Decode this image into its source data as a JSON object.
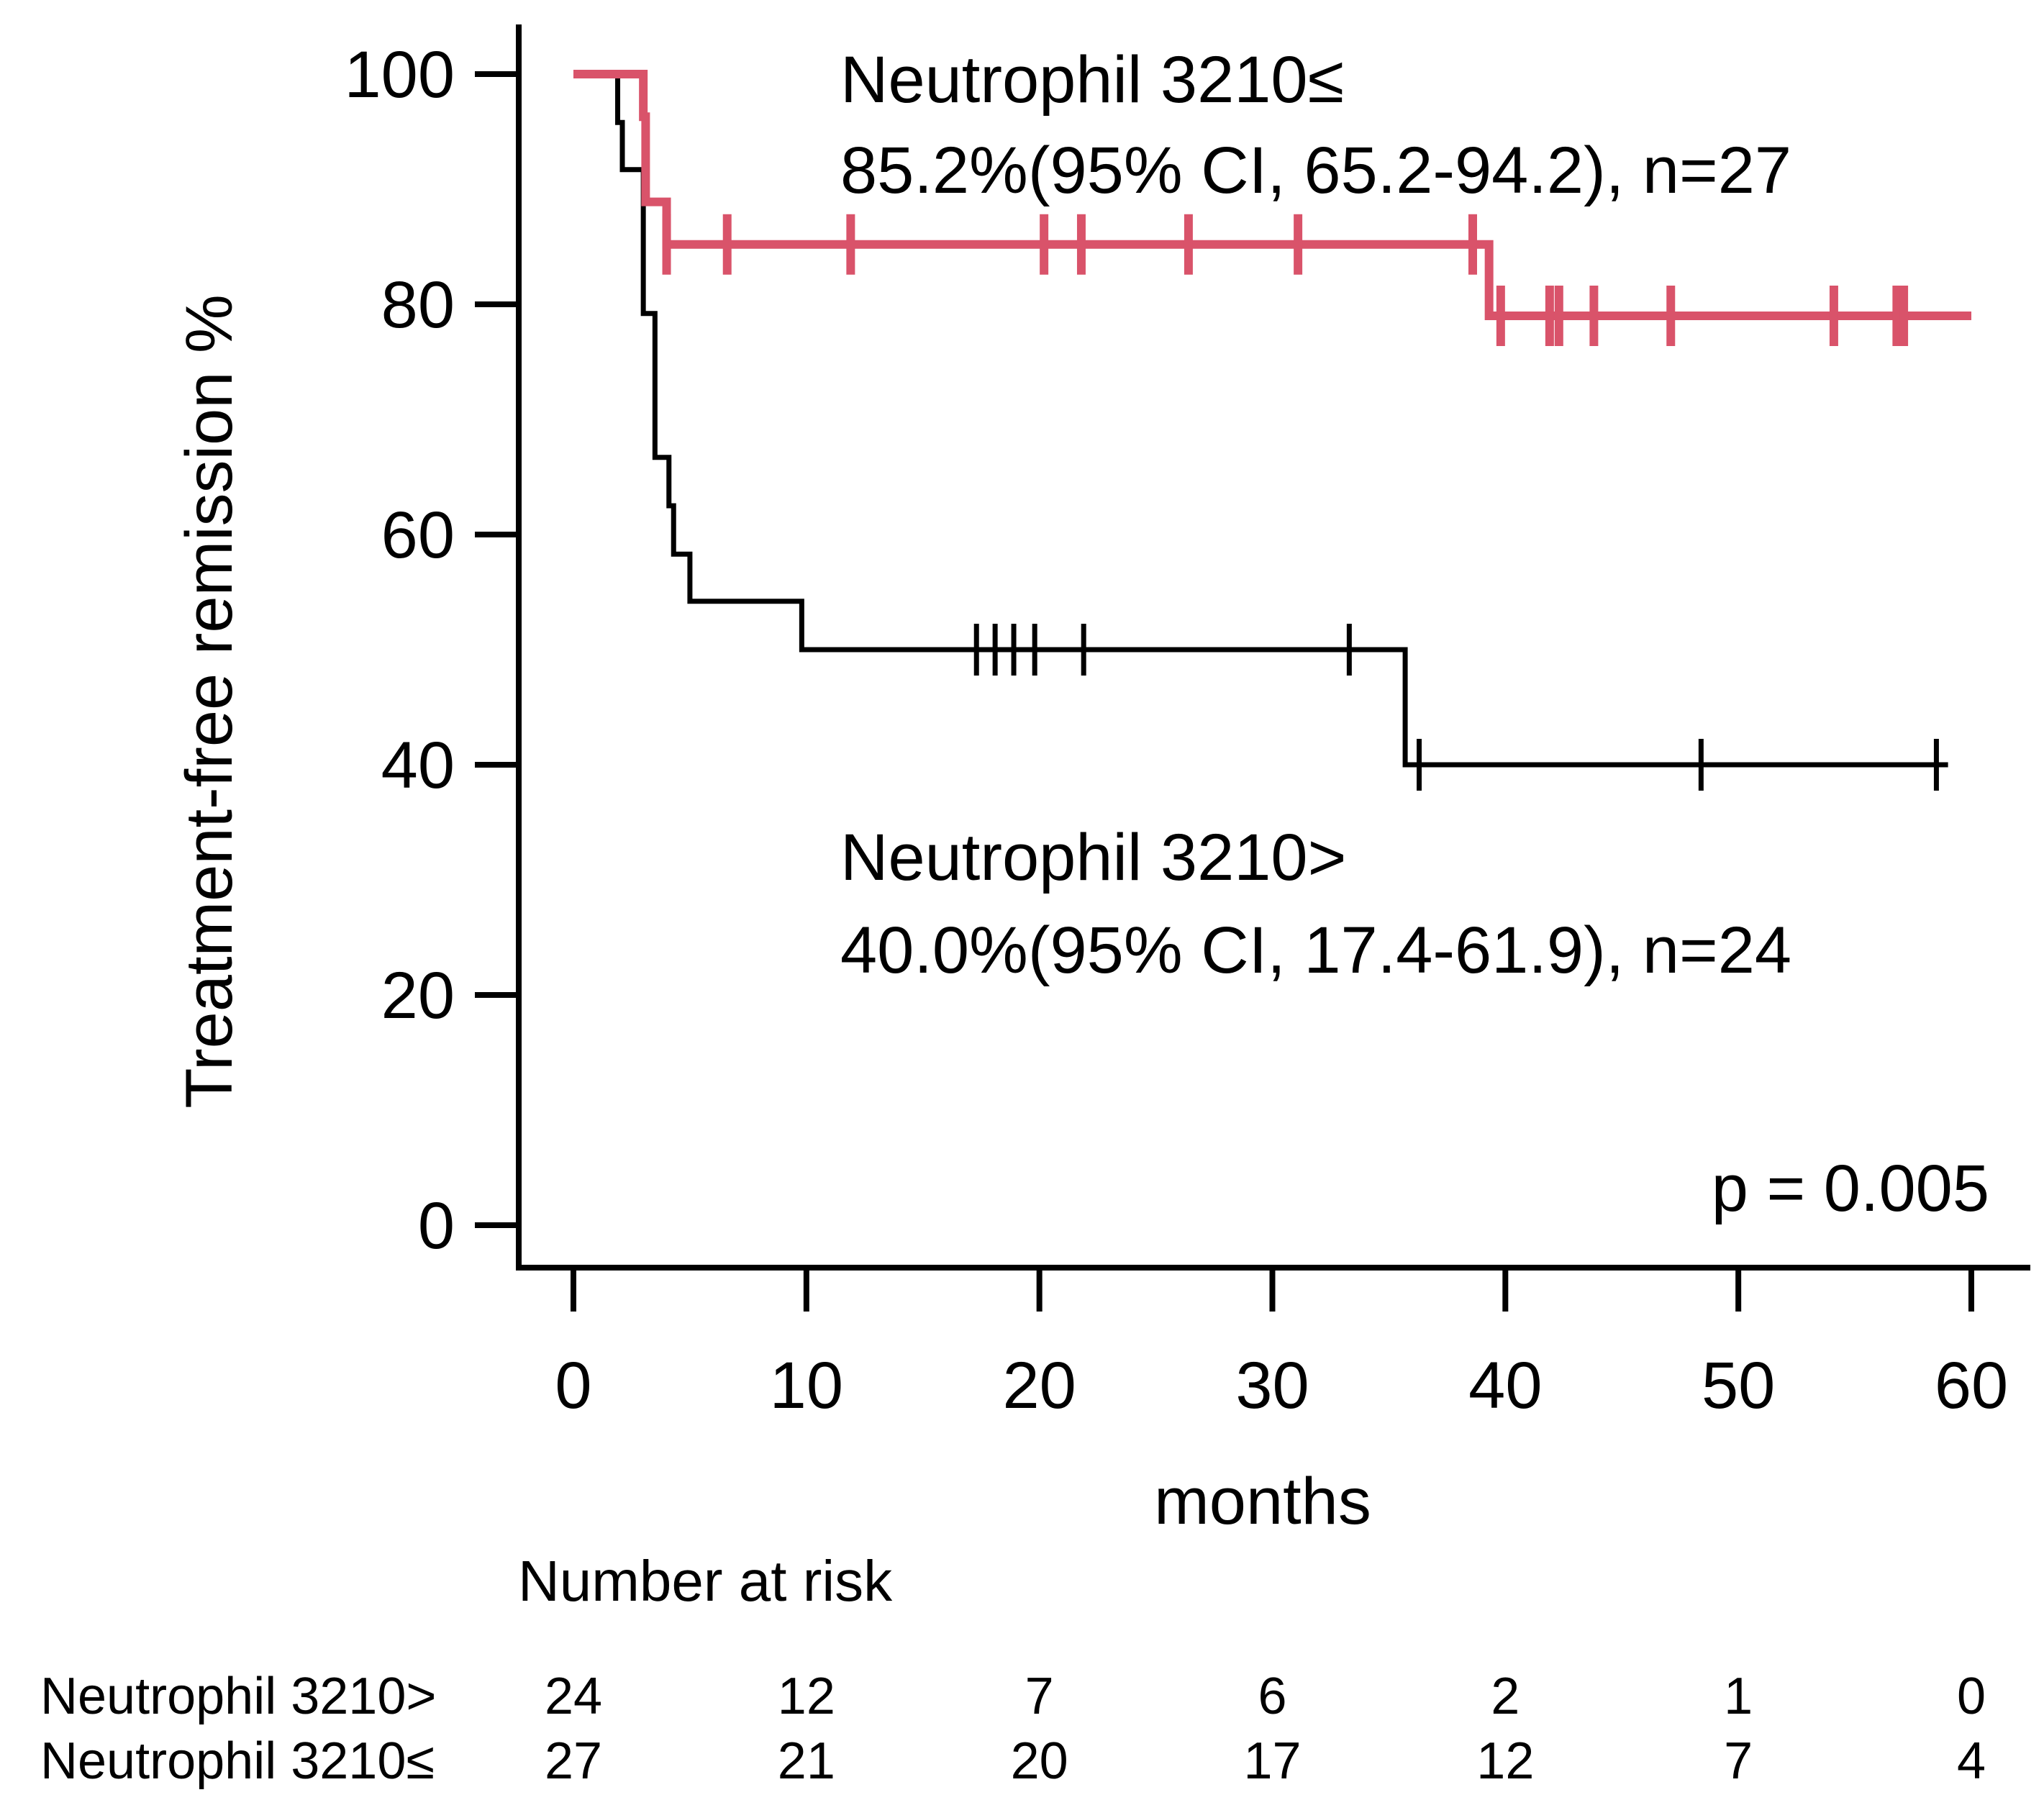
{
  "chart_data": {
    "type": "line",
    "subtype": "kaplan-meier",
    "title": "",
    "xlabel": "months",
    "ylabel": "Treatment-free remission %",
    "xlim": [
      0,
      60
    ],
    "ylim": [
      0,
      100
    ],
    "x_ticks": [
      "0",
      "10",
      "20",
      "30",
      "40",
      "50",
      "60"
    ],
    "y_ticks": [
      "0",
      "20",
      "40",
      "60",
      "80",
      "100"
    ],
    "grid": false,
    "p_value": "p = 0.005",
    "series": [
      {
        "name": "Neutrophil 3210≤",
        "label_line1": "Neutrophil 3210≤",
        "label_line2": "85.2%(95% CI, 65.2-94.2), n=27",
        "color": "#d9536a",
        "steps": [
          [
            0,
            100
          ],
          [
            3,
            96.3
          ],
          [
            3.1,
            88.9
          ],
          [
            4,
            85.2
          ],
          [
            39.3,
            79.0
          ],
          [
            60,
            79.0
          ]
        ],
        "censor_times": [
          4,
          6.6,
          11.9,
          20.2,
          21.8,
          26.4,
          31.1,
          38.6,
          39.8,
          41.9,
          42.3,
          43.8,
          47.1,
          54.1,
          56.8,
          57.1
        ]
      },
      {
        "name": "Neutrophil 3210>",
        "label_line1": "Neutrophil 3210>",
        "label_line2": "40.0%(95% CI, 17.4-61.9), n=24",
        "color": "#000000",
        "steps": [
          [
            0,
            100
          ],
          [
            1.9,
            95.8
          ],
          [
            2.1,
            91.7
          ],
          [
            3,
            79.2
          ],
          [
            3.5,
            66.7
          ],
          [
            4.1,
            62.5
          ],
          [
            4.3,
            58.3
          ],
          [
            5,
            54.2
          ],
          [
            9.8,
            50.0
          ],
          [
            35.7,
            40.0
          ],
          [
            59,
            40.0
          ]
        ],
        "censor_times": [
          17.3,
          18.1,
          18.9,
          19.8,
          21.9,
          33.3,
          36.3,
          48.4,
          58.5
        ]
      }
    ],
    "risk_table": {
      "title": "Number at risk",
      "rows": [
        {
          "label": "Neutrophil 3210>",
          "values": [
            "24",
            "12",
            "7",
            "6",
            "2",
            "1",
            "0"
          ]
        },
        {
          "label": "Neutrophil 3210≤",
          "values": [
            "27",
            "21",
            "20",
            "17",
            "12",
            "7",
            "4"
          ]
        }
      ]
    }
  }
}
